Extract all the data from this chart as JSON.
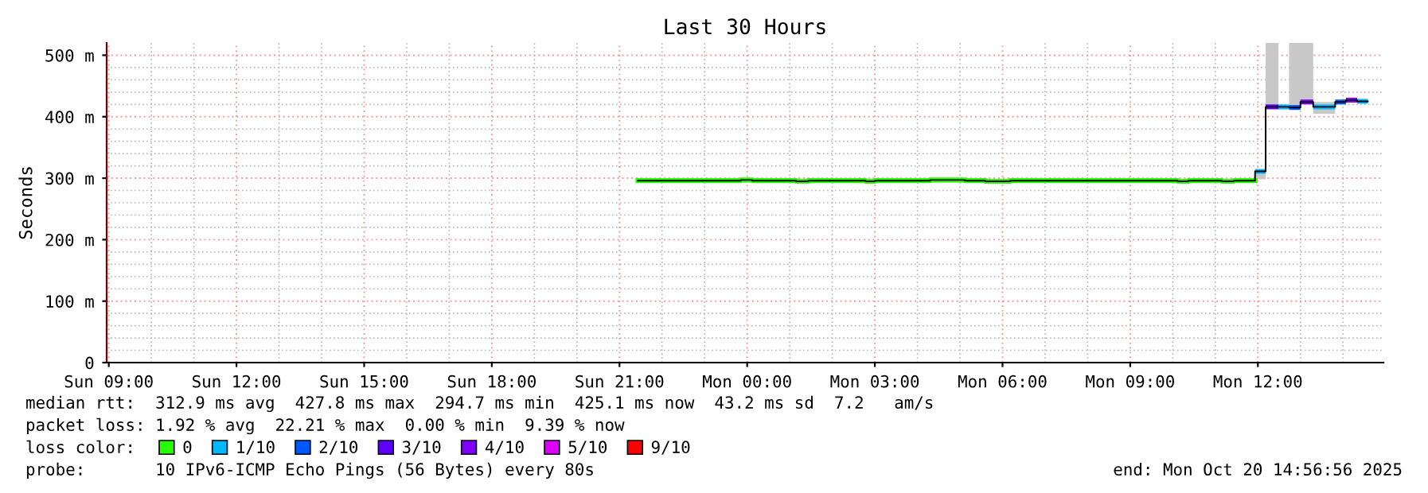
{
  "chart_data": {
    "type": "step",
    "title": "Last 30 Hours",
    "ylabel": "Seconds",
    "legend_title": "loss color:",
    "legend": "bottom",
    "grid": true,
    "x": [
      "2025-10-19T21:26",
      "2025-10-19T23:51",
      "2025-10-20T00:07",
      "2025-10-20T01:09",
      "2025-10-20T01:26",
      "2025-10-20T02:47",
      "2025-10-20T03:00",
      "2025-10-20T04:18",
      "2025-10-20T05:07",
      "2025-10-20T05:36",
      "2025-10-20T06:11",
      "2025-10-20T10:07",
      "2025-10-20T10:22",
      "2025-10-20T11:09",
      "2025-10-20T11:26",
      "2025-10-20T11:56",
      "2025-10-20T12:11",
      "2025-10-20T12:29",
      "2025-10-20T12:44",
      "2025-10-20T13:00",
      "2025-10-20T13:18",
      "2025-10-20T13:49",
      "2025-10-20T14:04",
      "2025-10-20T14:20",
      "2025-10-20T14:35"
    ],
    "series": [
      {
        "color": "#000000",
        "values": [
          296,
          297,
          296,
          295,
          296,
          295,
          296,
          297,
          296,
          295,
          296,
          295,
          296,
          295,
          296,
          311,
          416,
          416,
          415,
          424,
          416,
          424,
          427,
          425,
          425
        ],
        "lower": [
          295,
          296,
          295,
          294,
          295,
          294,
          295,
          296,
          295,
          294,
          295,
          294,
          295,
          294,
          295,
          298,
          414,
          412,
          413,
          420,
          405,
          420,
          424,
          423,
          423
        ],
        "upper": [
          297,
          298,
          297,
          296,
          297,
          296,
          297,
          298,
          297,
          296,
          297,
          296,
          297,
          296,
          297,
          311,
          520,
          417,
          520,
          520,
          424,
          425,
          428,
          426,
          426
        ]
      },
      {
        "name": "0",
        "color": "#26ff00",
        "x": [
          "2025-10-19T21:26",
          "2025-10-19T23:51",
          "2025-10-20T00:07",
          "2025-10-20T01:09",
          "2025-10-20T01:26",
          "2025-10-20T02:47",
          "2025-10-20T03:00",
          "2025-10-20T04:18",
          "2025-10-20T05:07",
          "2025-10-20T05:36",
          "2025-10-20T06:11",
          "2025-10-20T10:07",
          "2025-10-20T10:22",
          "2025-10-20T11:09",
          "2025-10-20T11:26",
          "2025-10-20T11:56"
        ],
        "values": [
          296,
          297,
          296,
          295,
          296,
          295,
          296,
          297,
          296,
          295,
          296,
          295,
          296,
          295,
          296,
          296
        ]
      },
      {
        "name": "1/10",
        "type": "line",
        "color": "#00b8ff",
        "x": [
          "2025-10-20T11:56",
          "2025-10-20T12:11"
        ],
        "values": [
          311,
          311
        ]
      },
      {
        "type": "line",
        "color": "#00b8ff",
        "x": [
          "2025-10-20T12:29",
          "2025-10-20T12:44"
        ],
        "values": [
          416,
          416
        ]
      },
      {
        "type": "line",
        "color": "#00b8ff",
        "x": [
          "2025-10-20T13:18",
          "2025-10-20T13:49"
        ],
        "values": [
          416,
          416
        ]
      },
      {
        "type": "line",
        "color": "#00b8ff",
        "x": [
          "2025-10-20T14:20",
          "2025-10-20T14:35"
        ],
        "values": [
          425,
          425
        ]
      },
      {
        "name": "2/10",
        "type": "line",
        "color": "#0059ff",
        "x": [
          "2025-10-20T12:44",
          "2025-10-20T13:00"
        ],
        "values": [
          415,
          415
        ]
      },
      {
        "type": "line",
        "color": "#0059ff",
        "x": [
          "2025-10-20T13:49",
          "2025-10-20T14:04"
        ],
        "values": [
          424,
          424
        ]
      },
      {
        "name": "3/10",
        "type": "line",
        "color": "#5e00ff",
        "x": [
          "2025-10-20T12:11",
          "2025-10-20T12:29"
        ],
        "values": [
          416,
          416
        ]
      },
      {
        "name": "4/10",
        "type": "line",
        "color": "#7e00ff",
        "x": [
          "2025-10-20T13:00",
          "2025-10-20T13:18"
        ],
        "values": [
          424,
          424
        ]
      },
      {
        "type": "line",
        "color": "#7e00ff",
        "x": [
          "2025-10-20T14:04",
          "2025-10-20T14:20"
        ],
        "values": [
          427,
          427
        ]
      },
      {
        "name": "5/10",
        "type": "line",
        "color": "#dd00ff",
        "values": [
          null,
          null,
          null,
          null,
          null,
          null,
          null,
          null,
          null,
          null,
          null,
          null,
          null,
          null,
          null,
          null,
          null,
          null,
          null,
          null,
          null,
          null,
          null,
          null,
          null
        ]
      },
      {
        "name": "9/10",
        "type": "line",
        "color": "#ff0000",
        "values": [
          null,
          null,
          null,
          null,
          null,
          null,
          null,
          null,
          null,
          null,
          null,
          null,
          null,
          null,
          null,
          null,
          null,
          null,
          null,
          null,
          null,
          null,
          null,
          null,
          null
        ]
      }
    ],
    "xlim": [
      "2025-10-19T08:57",
      "2025-10-20T14:57"
    ],
    "xticks": [
      {
        "value": "2025-10-19T09:00",
        "label": "Sun 09:00"
      },
      {
        "value": "2025-10-19T12:00",
        "label": "Sun 12:00"
      },
      {
        "value": "2025-10-19T15:00",
        "label": "Sun 15:00"
      },
      {
        "value": "2025-10-19T18:00",
        "label": "Sun 18:00"
      },
      {
        "value": "2025-10-19T21:00",
        "label": "Sun 21:00"
      },
      {
        "value": "2025-10-20T00:00",
        "label": "Mon 00:00"
      },
      {
        "value": "2025-10-20T03:00",
        "label": "Mon 03:00"
      },
      {
        "value": "2025-10-20T06:00",
        "label": "Mon 06:00"
      },
      {
        "value": "2025-10-20T09:00",
        "label": "Mon 09:00"
      },
      {
        "value": "2025-10-20T12:00",
        "label": "Mon 12:00"
      }
    ],
    "ylim": [
      0,
      520
    ],
    "yticks": [
      0,
      {
        "value": 100,
        "label": "100 m"
      },
      {
        "value": 200,
        "label": "200 m"
      },
      {
        "value": 300,
        "label": "300 m"
      },
      {
        "value": 400,
        "label": "400 m"
      },
      {
        "value": 500,
        "label": "500 m"
      }
    ],
    "annotations": [
      "median rtt:  312.9 ms avg  427.8 ms max  294.7 ms min  425.1 ms now  43.2 ms sd  7.2   am/s",
      "packet loss: 1.92 % avg  22.21 % max  0.00 % min  9.39 % now",
      "probe:       10 IPv6-ICMP Echo Pings (56 Bytes) every 80s",
      "end: Mon Oct 20 14:56:56 2025"
    ]
  }
}
